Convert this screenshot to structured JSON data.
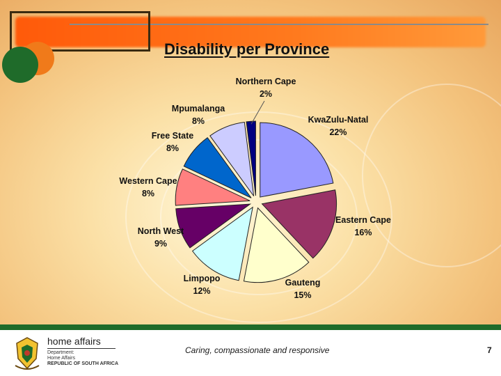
{
  "title": "Disability per Province",
  "chart_data": {
    "type": "pie",
    "title": "Disability per Province",
    "slices": [
      {
        "name": "KwaZulu-Natal",
        "value": 22,
        "label": "22%",
        "color": "#9999ff"
      },
      {
        "name": "Eastern Cape",
        "value": 16,
        "label": "16%",
        "color": "#993366"
      },
      {
        "name": "Gauteng",
        "value": 15,
        "label": "15%",
        "color": "#ffffcc"
      },
      {
        "name": "Limpopo",
        "value": 12,
        "label": "12%",
        "color": "#ccffff"
      },
      {
        "name": "North West",
        "value": 9,
        "label": "9%",
        "color": "#660066"
      },
      {
        "name": "Western Cape",
        "value": 8,
        "label": "8%",
        "color": "#ff8080"
      },
      {
        "name": "Free State",
        "value": 8,
        "label": "8%",
        "color": "#0066cc"
      },
      {
        "name": "Mpumalanga",
        "value": 8,
        "label": "8%",
        "color": "#ccccff"
      },
      {
        "name": "Northern Cape",
        "value": 2,
        "label": "2%",
        "color": "#000080"
      }
    ]
  },
  "footer": {
    "logo_name": "home affairs",
    "dept_line1": "Department:",
    "dept_line2": "Home Affairs",
    "dept_line3": "REPUBLIC OF SOUTH AFRICA",
    "tagline": "Caring, compassionate and responsive",
    "page_number": "7"
  }
}
